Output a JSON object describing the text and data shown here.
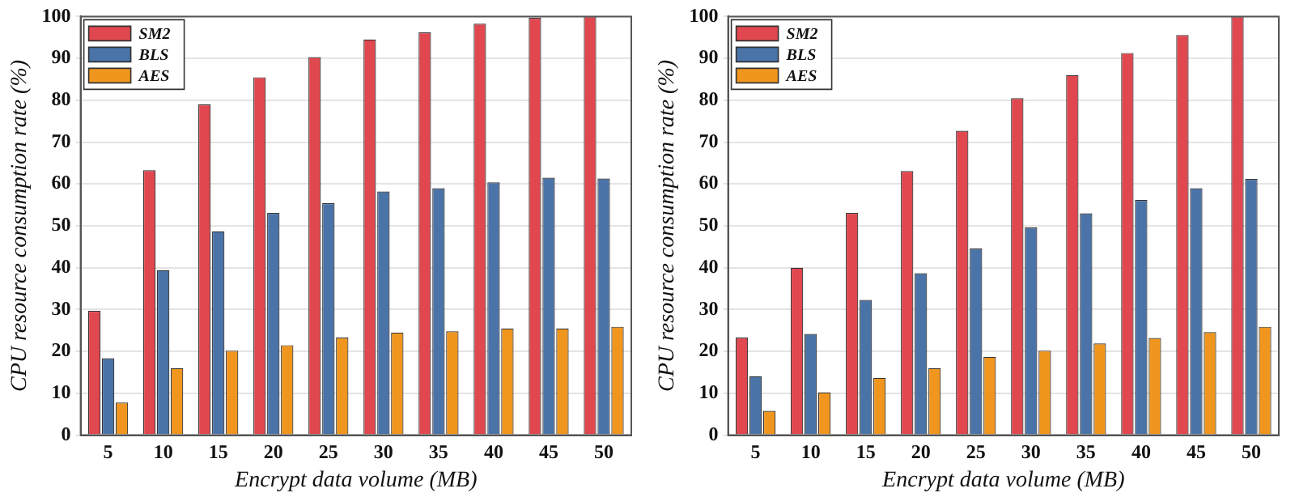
{
  "chart_data": [
    {
      "type": "bar",
      "xlabel": "Encrypt data volume (MB)",
      "ylabel": "CPU resource consumption rate (%)",
      "categories": [
        "5",
        "10",
        "15",
        "20",
        "25",
        "30",
        "35",
        "40",
        "45",
        "50"
      ],
      "series": [
        {
          "name": "SM2",
          "color": "#e0474f",
          "values": [
            29.7,
            63.3,
            79,
            85.5,
            90.3,
            94.5,
            96.2,
            98.3,
            99.7,
            100
          ]
        },
        {
          "name": "BLS",
          "color": "#4a73a8",
          "values": [
            18.4,
            39.4,
            48.7,
            53.1,
            55.4,
            58.2,
            59,
            60.4,
            61.5,
            61.3
          ]
        },
        {
          "name": "AES",
          "color": "#f0961e",
          "values": [
            7.8,
            16,
            20.2,
            21.5,
            23.3,
            24.5,
            24.8,
            25.5,
            25.5,
            25.9
          ]
        }
      ],
      "ylim": [
        0,
        100
      ],
      "yticks": [
        0,
        10,
        20,
        30,
        40,
        50,
        60,
        70,
        80,
        90,
        100
      ],
      "grid": "y",
      "legend": "top left"
    },
    {
      "type": "bar",
      "xlabel": "Encrypt data volume (MB)",
      "ylabel": "CPU resource consumption rate (%)",
      "categories": [
        "5",
        "10",
        "15",
        "20",
        "25",
        "30",
        "35",
        "40",
        "45",
        "50"
      ],
      "series": [
        {
          "name": "SM2",
          "color": "#e0474f",
          "values": [
            23.3,
            40,
            53.1,
            63.1,
            72.7,
            80.5,
            86,
            91.3,
            95.6,
            100
          ]
        },
        {
          "name": "BLS",
          "color": "#4a73a8",
          "values": [
            14.1,
            24.2,
            32.3,
            38.7,
            44.6,
            49.6,
            53,
            56.2,
            59,
            61.2
          ]
        },
        {
          "name": "AES",
          "color": "#f0961e",
          "values": [
            5.8,
            10.2,
            13.7,
            16,
            18.7,
            20.2,
            21.9,
            23.2,
            24.6,
            25.9
          ]
        }
      ],
      "ylim": [
        0,
        100
      ],
      "yticks": [
        0,
        10,
        20,
        30,
        40,
        50,
        60,
        70,
        80,
        90,
        100
      ],
      "grid": "y",
      "legend": "top left"
    }
  ]
}
